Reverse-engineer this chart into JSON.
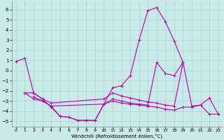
{
  "xlabel": "Windchill (Refroidissement éolien,°C)",
  "background_color": "#caeaea",
  "grid_color": "#aad8d8",
  "line_color": "#bb00aa",
  "x_ticks": [
    0,
    1,
    2,
    3,
    4,
    5,
    6,
    7,
    8,
    9,
    10,
    11,
    12,
    13,
    14,
    15,
    16,
    17,
    18,
    19,
    20,
    21,
    22,
    23
  ],
  "y_ticks": [
    -5,
    -4,
    -3,
    -2,
    -1,
    0,
    1,
    2,
    3,
    4,
    5,
    6
  ],
  "ylim": [
    -5.5,
    6.8
  ],
  "xlim": [
    -0.5,
    23.5
  ],
  "line1": {
    "x": [
      0,
      1,
      2,
      3,
      4,
      5,
      6,
      7,
      8,
      9,
      10,
      11,
      12,
      13,
      14,
      15,
      16,
      17,
      18,
      19
    ],
    "y": [
      0.9,
      1.2,
      -2.2,
      -2.8,
      -3.6,
      -4.5,
      -4.6,
      -4.9,
      -4.9,
      -4.9,
      -3.3,
      -1.7,
      -1.5,
      -0.5,
      3.0,
      5.9,
      6.2,
      4.8,
      2.9,
      0.8
    ]
  },
  "line2": {
    "x": [
      1,
      2,
      3,
      4,
      10,
      11,
      12,
      13,
      14,
      15,
      16,
      17,
      18,
      19
    ],
    "y": [
      -2.2,
      -2.2,
      -2.8,
      -3.2,
      -2.8,
      -2.2,
      -2.5,
      -2.7,
      -2.9,
      -3.1,
      -3.2,
      -3.4,
      -3.5,
      0.8
    ]
  },
  "line3": {
    "x": [
      2,
      3,
      4,
      5,
      6,
      7,
      8,
      9,
      10,
      11,
      12,
      13,
      14,
      15,
      16,
      17,
      18,
      19,
      20,
      21,
      22,
      23
    ],
    "y": [
      -2.6,
      -3.0,
      -3.5,
      -4.5,
      -4.6,
      -4.9,
      -4.9,
      -4.9,
      -3.3,
      -3.0,
      -3.2,
      -3.3,
      -3.4,
      -3.5,
      -3.6,
      -3.8,
      -3.9,
      -3.6,
      -3.6,
      -3.4,
      -4.3,
      -4.3
    ]
  },
  "line4": {
    "x": [
      1,
      2,
      3,
      4,
      10,
      11,
      12,
      13,
      14,
      15,
      16,
      17,
      18,
      19,
      20,
      21,
      22,
      23
    ],
    "y": [
      -2.2,
      -2.8,
      -3.0,
      -3.5,
      -3.3,
      -2.8,
      -3.0,
      -3.2,
      -3.3,
      -3.4,
      0.8,
      -0.3,
      -0.5,
      0.8,
      -3.5,
      -3.4,
      -2.7,
      -4.3
    ]
  }
}
